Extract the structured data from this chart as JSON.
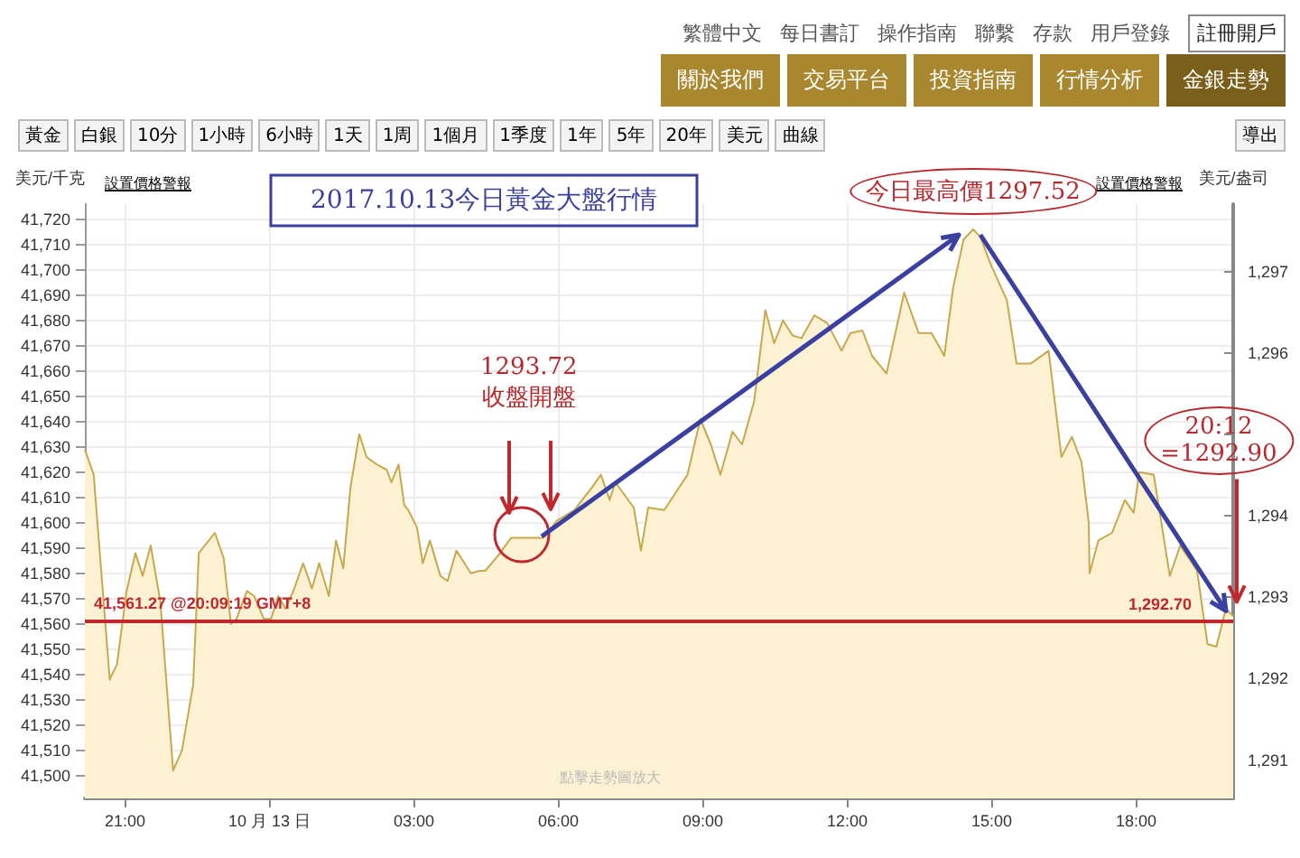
{
  "chart_data": {
    "type": "area",
    "title": "2017.10.13今日黃金大盤行情",
    "ylabel": "美元/千克",
    "y2label": "美元/盎司",
    "x": [
      "2017-10-12T20:10",
      "2017-10-12T20:21",
      "2017-10-12T20:41",
      "2017-10-12T20:50",
      "2017-10-12T21:02",
      "2017-10-12T21:13",
      "2017-10-12T21:22",
      "2017-10-12T21:32",
      "2017-10-12T21:44",
      "2017-10-12T22:00",
      "2017-10-12T22:11",
      "2017-10-12T22:25",
      "2017-10-12T22:32",
      "2017-10-12T22:52",
      "2017-10-12T23:03",
      "2017-10-12T23:12",
      "2017-10-12T23:19",
      "2017-10-12T23:32",
      "2017-10-12T23:41",
      "2017-10-12T23:53",
      "2017-10-13T00:02",
      "2017-10-13T00:11",
      "2017-10-13T00:20",
      "2017-10-13T00:31",
      "2017-10-13T00:42",
      "2017-10-13T00:53",
      "2017-10-13T01:02",
      "2017-10-13T01:14",
      "2017-10-13T01:23",
      "2017-10-13T01:32",
      "2017-10-13T01:41",
      "2017-10-13T01:52",
      "2017-10-13T02:01",
      "2017-10-13T02:14",
      "2017-10-13T02:26",
      "2017-10-13T02:32",
      "2017-10-13T02:41",
      "2017-10-13T02:48",
      "2017-10-13T02:53",
      "2017-10-13T03:04",
      "2017-10-13T03:11",
      "2017-10-13T03:20",
      "2017-10-13T03:33",
      "2017-10-13T03:42",
      "2017-10-13T03:53",
      "2017-10-13T04:11",
      "2017-10-13T04:22",
      "2017-10-13T04:29",
      "2017-10-13T04:45",
      "2017-10-13T05:01",
      "2017-10-13T05:41",
      "2017-10-13T05:59",
      "2017-10-13T06:20",
      "2017-10-13T06:42",
      "2017-10-13T06:53",
      "2017-10-13T07:04",
      "2017-10-13T07:11",
      "2017-10-13T07:34",
      "2017-10-13T07:43",
      "2017-10-13T07:52",
      "2017-10-13T08:12",
      "2017-10-13T08:41",
      "2017-10-13T08:57",
      "2017-10-13T09:10",
      "2017-10-13T09:22",
      "2017-10-13T09:37",
      "2017-10-13T09:49",
      "2017-10-13T10:04",
      "2017-10-13T10:18",
      "2017-10-13T10:29",
      "2017-10-13T10:40",
      "2017-10-13T10:52",
      "2017-10-13T11:03",
      "2017-10-13T11:19",
      "2017-10-13T11:35",
      "2017-10-13T11:53",
      "2017-10-13T12:04",
      "2017-10-13T12:19",
      "2017-10-13T12:31",
      "2017-10-13T12:49",
      "2017-10-13T13:11",
      "2017-10-13T13:29",
      "2017-10-13T13:45",
      "2017-10-13T14:01",
      "2017-10-13T14:12",
      "2017-10-13T14:25",
      "2017-10-13T14:37",
      "2017-10-13T14:46",
      "2017-10-13T14:59",
      "2017-10-13T15:19",
      "2017-10-13T15:31",
      "2017-10-13T15:49",
      "2017-10-13T16:11",
      "2017-10-13T16:27",
      "2017-10-13T16:40",
      "2017-10-13T16:52",
      "2017-10-13T17:01",
      "2017-10-13T17:02",
      "2017-10-13T17:13",
      "2017-10-13T17:30",
      "2017-10-13T17:46",
      "2017-10-13T17:57",
      "2017-10-13T18:04",
      "2017-10-13T18:22",
      "2017-10-13T18:42",
      "2017-10-13T18:55",
      "2017-10-13T19:16",
      "2017-10-13T19:29",
      "2017-10-13T19:40",
      "2017-10-13T19:52",
      "2017-10-13T20:01"
    ],
    "series": [
      {
        "color": "#c8a84c",
        "values": [
          41629,
          41619,
          41538,
          41544,
          41573,
          41588,
          41579,
          41591,
          41569,
          41502,
          41510,
          41536,
          41588,
          41596,
          41586,
          41560,
          41562,
          41573,
          41571,
          41562,
          41562,
          41571,
          41566,
          41574,
          41584,
          41574,
          41584,
          41571,
          41593,
          41582,
          41614,
          41635,
          41626,
          41623,
          41621,
          41616,
          41623,
          41607,
          41605,
          41598,
          41584,
          41593,
          41579,
          41577,
          41589,
          41580,
          41581,
          41581,
          41587,
          41594,
          41594,
          41601,
          41605,
          41614,
          41619,
          41609,
          41616,
          41606,
          41589,
          41606,
          41605,
          41619,
          41641,
          41631,
          41619,
          41636,
          41631,
          41648,
          41684,
          41671,
          41680,
          41674,
          41673,
          41682,
          41679,
          41668,
          41675,
          41676,
          41666,
          41659,
          41691,
          41675,
          41675,
          41666,
          41693,
          41712,
          41716,
          41713,
          41702,
          41688,
          41663,
          41663,
          41668,
          41626,
          41634,
          41624,
          41600,
          41580,
          41593,
          41596,
          41609,
          41604,
          41620,
          41619,
          41579,
          41591,
          41581,
          41552,
          41551,
          41566,
          41563
        ]
      }
    ],
    "xlim": [
      "2017-10-12T20:10",
      "2017-10-13T20:01"
    ],
    "xticks": [
      {
        "value": "2017-10-12T21:00",
        "label": "21:00"
      },
      {
        "value": "2017-10-13T00:00",
        "label": "10 月 13 日"
      },
      {
        "value": "2017-10-13T03:00",
        "label": "03:00"
      },
      {
        "value": "2017-10-13T06:00",
        "label": "06:00"
      },
      {
        "value": "2017-10-13T09:00",
        "label": "09:00"
      },
      {
        "value": "2017-10-13T12:00",
        "label": "12:00"
      },
      {
        "value": "2017-10-13T15:00",
        "label": "15:00"
      },
      {
        "value": "2017-10-13T18:00",
        "label": "18:00"
      }
    ],
    "ylim": [
      41491,
      41726
    ],
    "yticks": [
      {
        "value": 41500,
        "label": "41,500"
      },
      {
        "value": 41510,
        "label": "41,510"
      },
      {
        "value": 41520,
        "label": "41,520"
      },
      {
        "value": 41530,
        "label": "41,530"
      },
      {
        "value": 41540,
        "label": "41,540"
      },
      {
        "value": 41550,
        "label": "41,550"
      },
      {
        "value": 41560,
        "label": "41,560"
      },
      {
        "value": 41570,
        "label": "41,570"
      },
      {
        "value": 41580,
        "label": "41,580"
      },
      {
        "value": 41590,
        "label": "41,590"
      },
      {
        "value": 41600,
        "label": "41,600"
      },
      {
        "value": 41610,
        "label": "41,610"
      },
      {
        "value": 41620,
        "label": "41,620"
      },
      {
        "value": 41630,
        "label": "41,630"
      },
      {
        "value": 41640,
        "label": "41,640"
      },
      {
        "value": 41650,
        "label": "41,650"
      },
      {
        "value": 41660,
        "label": "41,660"
      },
      {
        "value": 41670,
        "label": "41,670"
      },
      {
        "value": 41680,
        "label": "41,680"
      },
      {
        "value": 41690,
        "label": "41,690"
      },
      {
        "value": 41700,
        "label": "41,700"
      },
      {
        "value": 41710,
        "label": "41,710"
      },
      {
        "value": 41720,
        "label": "41,720"
      }
    ],
    "y2lim": [
      1290.53,
      1297.83
    ],
    "y2ticks": [
      {
        "value": 1291,
        "label": "1,291"
      },
      {
        "value": 1292,
        "label": "1,292"
      },
      {
        "value": 1293,
        "label": "1,293"
      },
      {
        "value": 1294,
        "label": "1,294"
      },
      {
        "value": 1295,
        "label": null
      },
      {
        "value": 1296,
        "label": "1,296"
      },
      {
        "value": 1297,
        "label": "1,297"
      }
    ],
    "ref_lines": [
      {
        "axis": "y",
        "value": 41561.27,
        "label": "41,561.27 @20:09:19 GMT+8",
        "color": "#c0282d"
      },
      {
        "axis": "y2",
        "value": 1292.7,
        "label": "1,292.70",
        "color": "#c0282d"
      }
    ],
    "grid": true,
    "marker": "none",
    "line_style": "solid",
    "annotations": [
      "繁體中文",
      "每日書訂",
      "操作指南",
      "聯繫",
      "存款",
      "用戶登錄",
      "註冊開戶",
      "關於我們",
      "交易平台",
      "投資指南",
      "行情分析",
      "金銀走勢",
      "黃金",
      "白銀",
      "10分",
      "1小時",
      "6小時",
      "1天",
      "1周",
      "1個月",
      "1季度",
      "1年",
      "5年",
      "20年",
      "美元",
      "曲線",
      "導出",
      "設置價格警報",
      "設置價格警報",
      "點擊走勢圖放大",
      "1293.72\n收盤開盤",
      {
        "text": "今日最高價1297.52",
        "x": "2017-10-13T14:37",
        "y": 41716
      },
      {
        "text": "20:12\n=1292.90",
        "x": "2017-10-13T20:01",
        "y": 41563
      }
    ]
  }
}
